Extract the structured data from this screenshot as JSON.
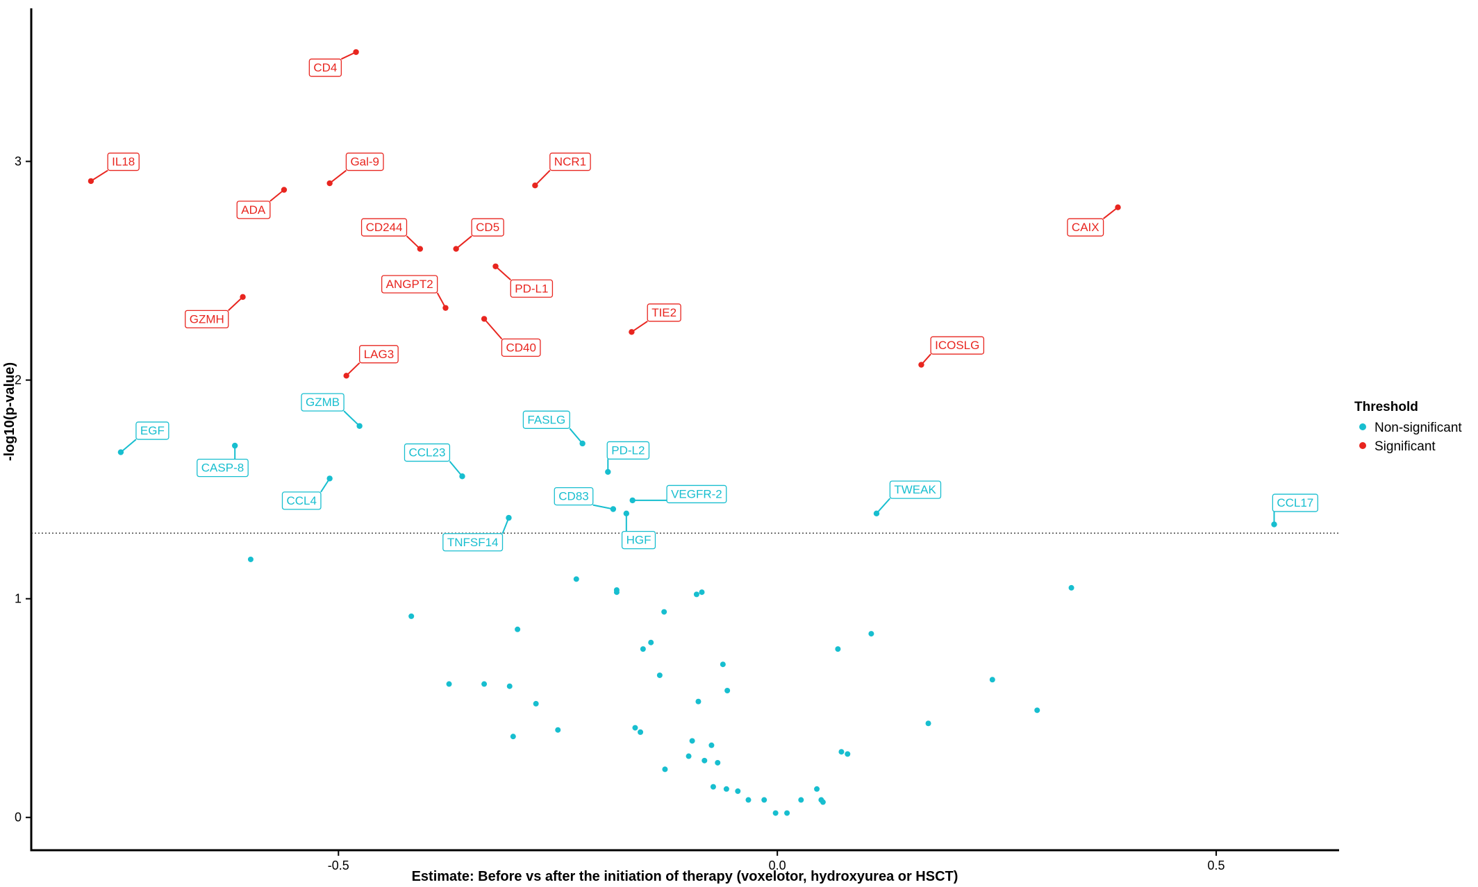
{
  "chart_data": {
    "type": "scatter",
    "title": "",
    "xlabel": "Estimate: Before vs after the initiation of therapy (voxelotor, hydroxyurea or HSCT)",
    "ylabel": "-log10(p-value)",
    "xlim": [
      -0.85,
      0.64
    ],
    "ylim": [
      -0.15,
      3.7
    ],
    "x_ticks": [
      -0.5,
      0.0,
      0.5
    ],
    "x_tick_labels": [
      "-0.5",
      "0.0",
      "0.5"
    ],
    "y_ticks": [
      0,
      1,
      2,
      3
    ],
    "y_tick_labels": [
      "0",
      "1",
      "2",
      "3"
    ],
    "threshold_line": {
      "y": 1.3,
      "style": "dotted"
    },
    "grid": false,
    "colors": {
      "Non-significant": "#17BECF",
      "Significant": "#E8251F"
    },
    "legend": {
      "title": "Threshold",
      "position": "right",
      "entries": [
        "Non-significant",
        "Significant"
      ]
    },
    "labeled_points": [
      {
        "label": "CD4",
        "x": -0.48,
        "y": 3.5,
        "group": "Significant",
        "lx": -0.515,
        "ly": 3.43
      },
      {
        "label": "IL18",
        "x": -0.782,
        "y": 2.91,
        "group": "Significant",
        "lx": -0.745,
        "ly": 3.0
      },
      {
        "label": "Gal-9",
        "x": -0.51,
        "y": 2.9,
        "group": "Significant",
        "lx": -0.47,
        "ly": 3.0
      },
      {
        "label": "NCR1",
        "x": -0.276,
        "y": 2.89,
        "group": "Significant",
        "lx": -0.236,
        "ly": 3.0
      },
      {
        "label": "ADA",
        "x": -0.562,
        "y": 2.87,
        "group": "Significant",
        "lx": -0.597,
        "ly": 2.78
      },
      {
        "label": "CAIX",
        "x": 0.388,
        "y": 2.79,
        "group": "Significant",
        "lx": 0.351,
        "ly": 2.7
      },
      {
        "label": "CD244",
        "x": -0.407,
        "y": 2.6,
        "group": "Significant",
        "lx": -0.448,
        "ly": 2.7
      },
      {
        "label": "CD5",
        "x": -0.366,
        "y": 2.6,
        "group": "Significant",
        "lx": -0.33,
        "ly": 2.7
      },
      {
        "label": "PD-L1",
        "x": -0.321,
        "y": 2.52,
        "group": "Significant",
        "lx": -0.28,
        "ly": 2.42
      },
      {
        "label": "ANGPT2",
        "x": -0.378,
        "y": 2.33,
        "group": "Significant",
        "lx": -0.419,
        "ly": 2.44
      },
      {
        "label": "GZMH",
        "x": -0.609,
        "y": 2.38,
        "group": "Significant",
        "lx": -0.65,
        "ly": 2.28
      },
      {
        "label": "CD40",
        "x": -0.334,
        "y": 2.28,
        "group": "Significant",
        "lx": -0.292,
        "ly": 2.15
      },
      {
        "label": "TIE2",
        "x": -0.166,
        "y": 2.22,
        "group": "Significant",
        "lx": -0.129,
        "ly": 2.31
      },
      {
        "label": "ICOSLG",
        "x": 0.164,
        "y": 2.07,
        "group": "Significant",
        "lx": 0.205,
        "ly": 2.16
      },
      {
        "label": "LAG3",
        "x": -0.491,
        "y": 2.02,
        "group": "Significant",
        "lx": -0.454,
        "ly": 2.12
      },
      {
        "label": "GZMB",
        "x": -0.476,
        "y": 1.79,
        "group": "Non-significant",
        "lx": -0.518,
        "ly": 1.9
      },
      {
        "label": "EGF",
        "x": -0.748,
        "y": 1.67,
        "group": "Non-significant",
        "lx": -0.712,
        "ly": 1.77
      },
      {
        "label": "FASLG",
        "x": -0.222,
        "y": 1.71,
        "group": "Non-significant",
        "lx": -0.263,
        "ly": 1.82
      },
      {
        "label": "CASP-8",
        "x": -0.618,
        "y": 1.7,
        "group": "Non-significant",
        "lx": -0.632,
        "ly": 1.6
      },
      {
        "label": "PD-L2",
        "x": -0.193,
        "y": 1.58,
        "group": "Non-significant",
        "lx": -0.17,
        "ly": 1.68
      },
      {
        "label": "CCL23",
        "x": -0.359,
        "y": 1.56,
        "group": "Non-significant",
        "lx": -0.399,
        "ly": 1.67
      },
      {
        "label": "CCL4",
        "x": -0.51,
        "y": 1.55,
        "group": "Non-significant",
        "lx": -0.542,
        "ly": 1.45
      },
      {
        "label": "CD83",
        "x": -0.187,
        "y": 1.41,
        "group": "Non-significant",
        "lx": -0.232,
        "ly": 1.47
      },
      {
        "label": "VEGFR-2",
        "x": -0.165,
        "y": 1.45,
        "group": "Non-significant",
        "lx": -0.092,
        "ly": 1.48
      },
      {
        "label": "HGF",
        "x": -0.172,
        "y": 1.39,
        "group": "Non-significant",
        "lx": -0.158,
        "ly": 1.27
      },
      {
        "label": "TNFSF14",
        "x": -0.306,
        "y": 1.37,
        "group": "Non-significant",
        "lx": -0.347,
        "ly": 1.26
      },
      {
        "label": "TWEAK",
        "x": 0.113,
        "y": 1.39,
        "group": "Non-significant",
        "lx": 0.157,
        "ly": 1.5
      },
      {
        "label": "CCL17",
        "x": 0.566,
        "y": 1.34,
        "group": "Non-significant",
        "lx": 0.59,
        "ly": 1.44
      }
    ],
    "unlabeled_points": [
      {
        "x": -0.6,
        "y": 1.18
      },
      {
        "x": 0.335,
        "y": 1.05
      },
      {
        "x": -0.229,
        "y": 1.09
      },
      {
        "x": -0.183,
        "y": 1.04
      },
      {
        "x": -0.183,
        "y": 1.03
      },
      {
        "x": -0.092,
        "y": 1.02
      },
      {
        "x": -0.086,
        "y": 1.03
      },
      {
        "x": -0.129,
        "y": 0.94
      },
      {
        "x": -0.417,
        "y": 0.92
      },
      {
        "x": -0.296,
        "y": 0.86
      },
      {
        "x": 0.107,
        "y": 0.84
      },
      {
        "x": -0.144,
        "y": 0.8
      },
      {
        "x": -0.153,
        "y": 0.77
      },
      {
        "x": 0.069,
        "y": 0.77
      },
      {
        "x": -0.062,
        "y": 0.7
      },
      {
        "x": -0.134,
        "y": 0.65
      },
      {
        "x": 0.245,
        "y": 0.63
      },
      {
        "x": -0.374,
        "y": 0.61
      },
      {
        "x": -0.334,
        "y": 0.61
      },
      {
        "x": -0.305,
        "y": 0.6
      },
      {
        "x": -0.057,
        "y": 0.58
      },
      {
        "x": -0.275,
        "y": 0.52
      },
      {
        "x": -0.09,
        "y": 0.53
      },
      {
        "x": 0.296,
        "y": 0.49
      },
      {
        "x": 0.172,
        "y": 0.43
      },
      {
        "x": -0.162,
        "y": 0.41
      },
      {
        "x": -0.156,
        "y": 0.39
      },
      {
        "x": -0.25,
        "y": 0.4
      },
      {
        "x": -0.301,
        "y": 0.37
      },
      {
        "x": -0.097,
        "y": 0.35
      },
      {
        "x": -0.075,
        "y": 0.33
      },
      {
        "x": 0.073,
        "y": 0.3
      },
      {
        "x": 0.08,
        "y": 0.29
      },
      {
        "x": -0.101,
        "y": 0.28
      },
      {
        "x": -0.083,
        "y": 0.26
      },
      {
        "x": -0.068,
        "y": 0.25
      },
      {
        "x": -0.128,
        "y": 0.22
      },
      {
        "x": -0.073,
        "y": 0.14
      },
      {
        "x": -0.058,
        "y": 0.13
      },
      {
        "x": -0.045,
        "y": 0.12
      },
      {
        "x": 0.045,
        "y": 0.13
      },
      {
        "x": -0.033,
        "y": 0.08
      },
      {
        "x": -0.015,
        "y": 0.08
      },
      {
        "x": 0.027,
        "y": 0.08
      },
      {
        "x": 0.05,
        "y": 0.08
      },
      {
        "x": 0.052,
        "y": 0.07
      },
      {
        "x": -0.002,
        "y": 0.02
      },
      {
        "x": 0.011,
        "y": 0.02
      }
    ]
  }
}
